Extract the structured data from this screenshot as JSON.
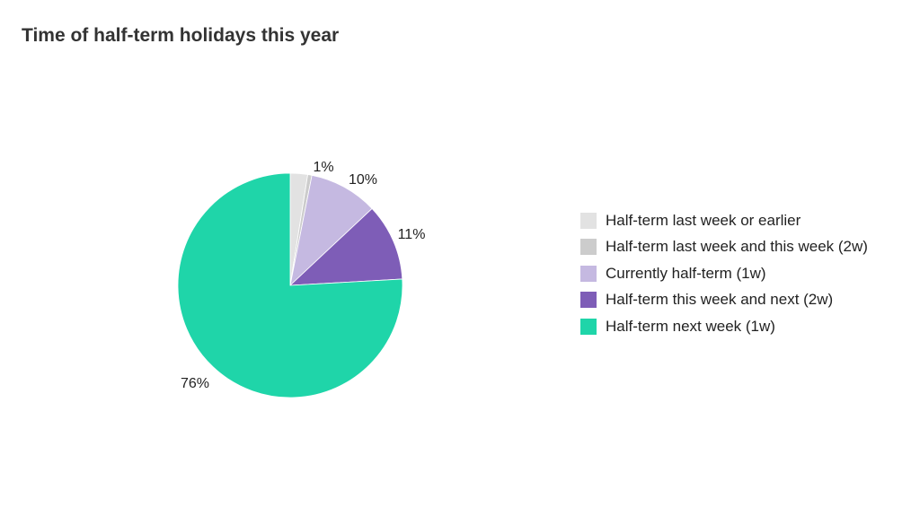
{
  "title": "Time of half-term holidays this year",
  "chart_data": {
    "type": "pie",
    "title": "Time of half-term holidays this year",
    "slices": [
      {
        "label": "Half-term last week or earlier",
        "value": 2.5,
        "color": "#e2e2e2",
        "data_label": ""
      },
      {
        "label": "Half-term last week and this week (2w)",
        "value": 0.6,
        "color": "#cccccc",
        "data_label": "1%"
      },
      {
        "label": "Currently half-term (1w)",
        "value": 9.9,
        "color": "#c5b9e1",
        "data_label": "10%"
      },
      {
        "label": "Half-term this week and next (2w)",
        "value": 11.1,
        "color": "#7e5db7",
        "data_label": "11%"
      },
      {
        "label": "Half-term next week (1w)",
        "value": 75.9,
        "color": "#1fd5a9",
        "data_label": "76%"
      }
    ],
    "legend_position": "right"
  }
}
